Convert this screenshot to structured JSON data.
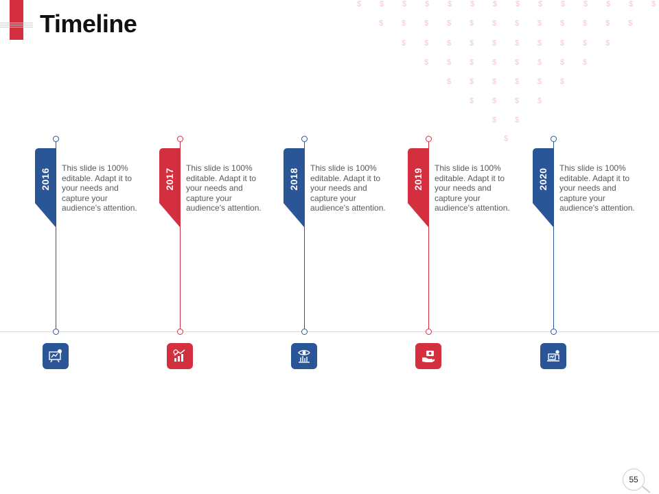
{
  "slide": {
    "title": "Timeline",
    "page_number": "55"
  },
  "colors": {
    "accent_red": "#d32f3f",
    "accent_blue": "#2a5597",
    "text_gray": "#595959",
    "pattern_pink": "#f5c7cd"
  },
  "pattern": {
    "glyph": "$"
  },
  "milestones": [
    {
      "year": "2016",
      "description": "This slide is 100% editable. Adapt it to your needs and capture your audience's attention.",
      "color": "#2a5597",
      "icon": "presentation-board-icon"
    },
    {
      "year": "2017",
      "description": "This slide is 100% editable. Adapt it to your needs and capture your audience's attention.",
      "color": "#d32f3f",
      "icon": "growth-chart-icon"
    },
    {
      "year": "2018",
      "description": "This slide is 100% editable. Adapt it to your needs and capture your audience's attention.",
      "color": "#2a5597",
      "icon": "vision-analytics-icon"
    },
    {
      "year": "2019",
      "description": "This slide is 100% editable. Adapt it to your needs and capture your audience's attention.",
      "color": "#d32f3f",
      "icon": "money-hand-icon"
    },
    {
      "year": "2020",
      "description": "This slide is 100% editable. Adapt it to your needs and capture your audience's attention.",
      "color": "#2a5597",
      "icon": "business-desk-icon"
    }
  ]
}
